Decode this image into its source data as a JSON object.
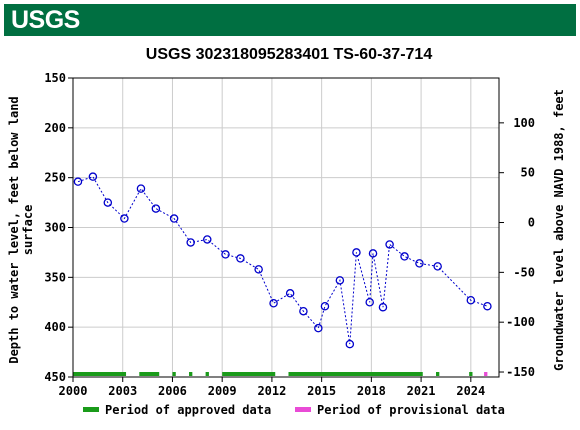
{
  "header": {
    "logo_text": "USGS",
    "brand_color": "#006f41"
  },
  "chart_data": {
    "type": "scatter",
    "title": "USGS 302318095283401 TS-60-37-714",
    "ylabel_left_line1": "Depth to water level, feet below land",
    "ylabel_left_line2": "surface",
    "ylabel_right": "Groundwater level above NAVD 1988, feet",
    "xlabel": "",
    "xlim": [
      2000,
      2025.7
    ],
    "ylim_left": [
      450,
      150
    ],
    "ylim_right": [
      -155,
      145
    ],
    "x_ticks": [
      2000,
      2003,
      2006,
      2009,
      2012,
      2015,
      2018,
      2021,
      2024
    ],
    "y_ticks_left": [
      150,
      200,
      250,
      300,
      350,
      400,
      450
    ],
    "y_ticks_right": [
      100,
      50,
      0,
      -50,
      -100,
      -150
    ],
    "grid": true,
    "series": [
      {
        "marker_color": "#0000cc",
        "line_style": "dotted",
        "points": [
          [
            2000.3,
            254
          ],
          [
            2001.2,
            249
          ],
          [
            2002.1,
            275
          ],
          [
            2003.1,
            291
          ],
          [
            2004.1,
            261
          ],
          [
            2005.0,
            281
          ],
          [
            2006.1,
            291
          ],
          [
            2007.1,
            315
          ],
          [
            2008.1,
            312
          ],
          [
            2009.2,
            327
          ],
          [
            2010.1,
            331
          ],
          [
            2011.2,
            342
          ],
          [
            2012.1,
            376
          ],
          [
            2013.1,
            366
          ],
          [
            2013.9,
            384
          ],
          [
            2014.8,
            401
          ],
          [
            2015.2,
            379
          ],
          [
            2016.1,
            353
          ],
          [
            2016.7,
            417
          ],
          [
            2017.1,
            325
          ],
          [
            2017.9,
            375
          ],
          [
            2018.1,
            326
          ],
          [
            2018.7,
            380
          ],
          [
            2019.1,
            317
          ],
          [
            2020.0,
            329
          ],
          [
            2020.9,
            336
          ],
          [
            2022.0,
            339
          ],
          [
            2024.0,
            373
          ],
          [
            2025.0,
            379
          ]
        ]
      }
    ],
    "approved_periods": [
      [
        2000.0,
        2003.2
      ],
      [
        2004.0,
        2005.2
      ],
      [
        2006.0,
        2006.2
      ],
      [
        2007.0,
        2007.2
      ],
      [
        2008.0,
        2008.2
      ],
      [
        2009.0,
        2012.2
      ],
      [
        2013.0,
        2021.1
      ],
      [
        2021.9,
        2022.1
      ],
      [
        2023.9,
        2024.1
      ]
    ],
    "provisional_periods": [
      [
        2024.8,
        2025.0
      ]
    ],
    "legend": [
      {
        "label": "Period of approved data",
        "color": "#1a9b1a"
      },
      {
        "label": "Period of provisional data",
        "color": "#e94bd6"
      }
    ],
    "legend_position": "bottom"
  }
}
